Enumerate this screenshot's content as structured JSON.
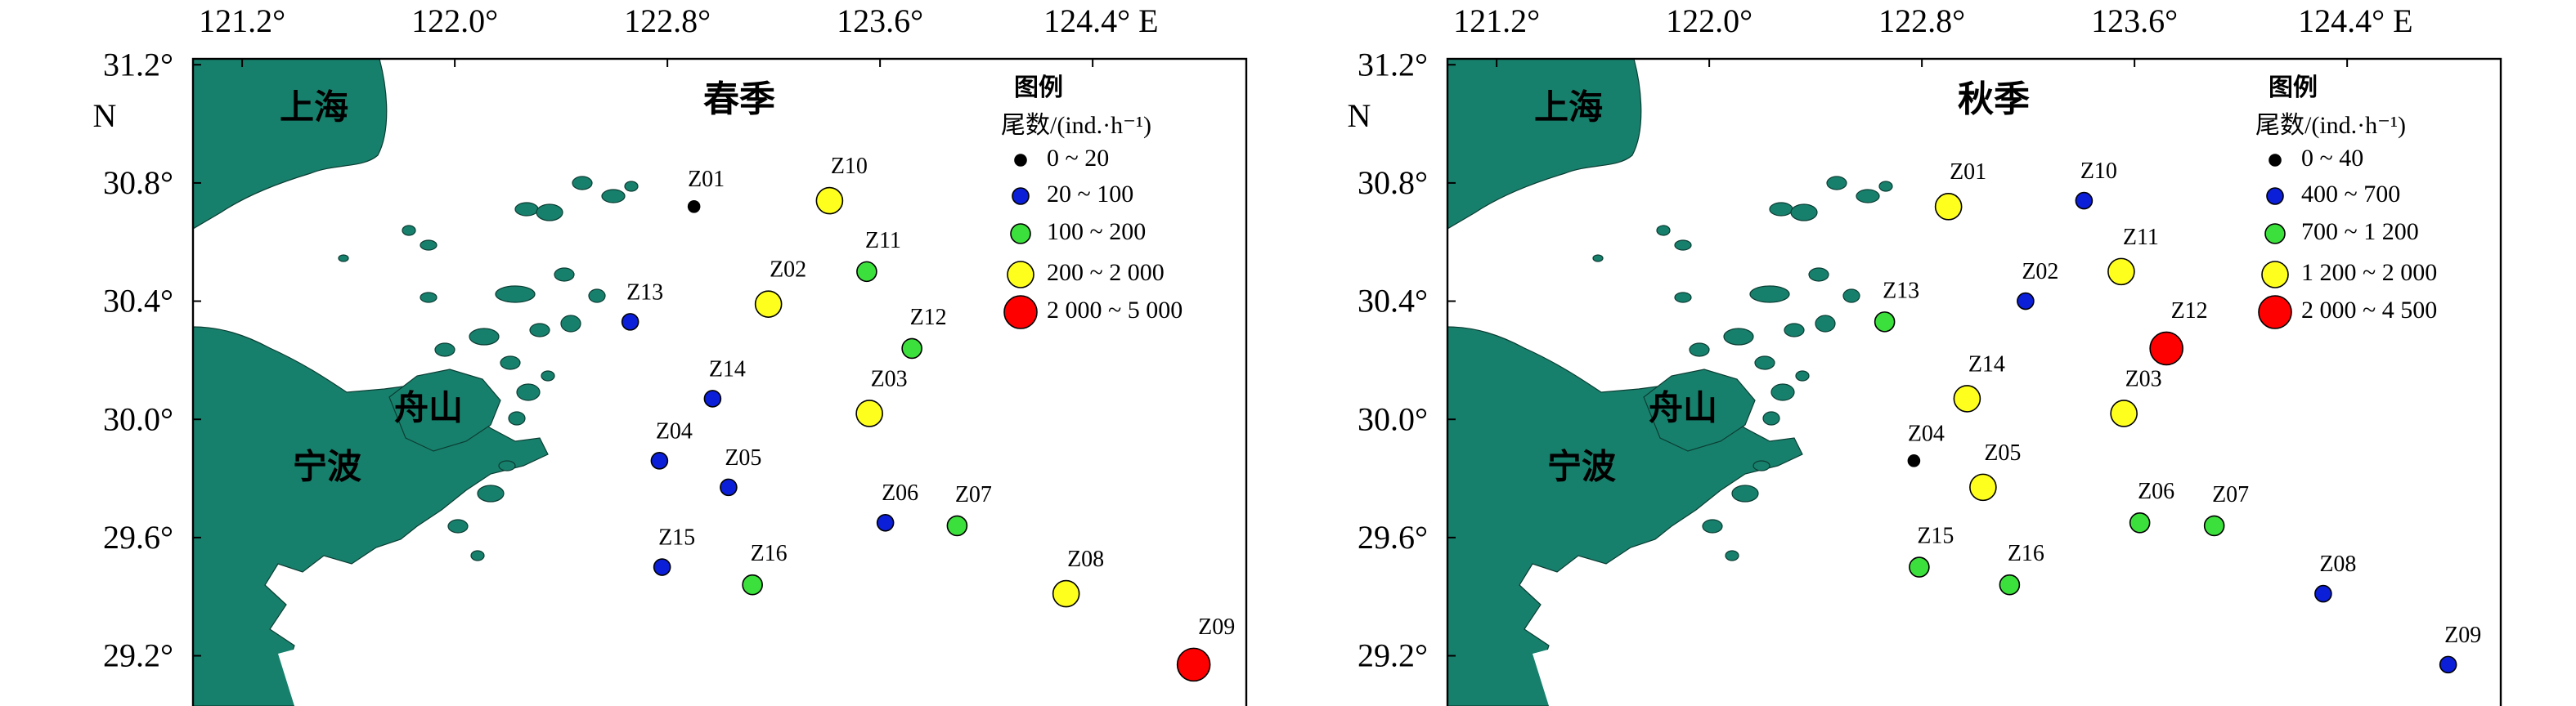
{
  "xlim": [
    121.015,
    124.978
  ],
  "ylim": [
    29.03,
    31.22
  ],
  "xticks": [
    {
      "value": 121.2,
      "label": "121.2°"
    },
    {
      "value": 122.0,
      "label": "122.0°"
    },
    {
      "value": 122.8,
      "label": "122.8°"
    },
    {
      "value": 123.6,
      "label": "123.6°"
    },
    {
      "value": 124.4,
      "label": "124.4° E"
    }
  ],
  "yticks": [
    {
      "value": 31.2,
      "label": "31.2°"
    },
    {
      "value": 30.8,
      "label": "30.8°"
    },
    {
      "value": 30.4,
      "label": "30.4°"
    },
    {
      "value": 30.0,
      "label": "30.0°"
    },
    {
      "value": 29.6,
      "label": "29.6°"
    },
    {
      "value": 29.2,
      "label": "29.2°"
    }
  ],
  "y_unit": "N",
  "places": [
    "上海",
    "舟山",
    "宁波"
  ],
  "panels": [
    {
      "title": "春季",
      "legend": {
        "title": "图例",
        "unit": "尾数/(ind.·h⁻¹)",
        "items": [
          {
            "label": "0 ~ 20",
            "color": "#000000"
          },
          {
            "label": "20 ~ 100",
            "color": "#0c1fd8"
          },
          {
            "label": "100 ~ 200",
            "color": "#3ce03c"
          },
          {
            "label": "200 ~ 2 000",
            "color": "#ffff1e"
          },
          {
            "label": "2 000 ~ 5 000",
            "color": "#ff0000"
          }
        ]
      },
      "stations": [
        {
          "name": "Z01",
          "lon": 122.9,
          "lat": 30.72,
          "class": 0
        },
        {
          "name": "Z10",
          "lon": 123.41,
          "lat": 30.74,
          "class": 3
        },
        {
          "name": "Z11",
          "lon": 123.55,
          "lat": 30.5,
          "class": 2
        },
        {
          "name": "Z02",
          "lon": 123.18,
          "lat": 30.39,
          "class": 3
        },
        {
          "name": "Z12",
          "lon": 123.72,
          "lat": 30.24,
          "class": 2
        },
        {
          "name": "Z13",
          "lon": 122.66,
          "lat": 30.33,
          "class": 1
        },
        {
          "name": "Z14",
          "lon": 122.97,
          "lat": 30.07,
          "class": 1
        },
        {
          "name": "Z03",
          "lon": 123.56,
          "lat": 30.02,
          "class": 3
        },
        {
          "name": "Z04",
          "lon": 122.77,
          "lat": 29.86,
          "class": 1
        },
        {
          "name": "Z05",
          "lon": 123.03,
          "lat": 29.77,
          "class": 1
        },
        {
          "name": "Z06",
          "lon": 123.62,
          "lat": 29.65,
          "class": 1
        },
        {
          "name": "Z07",
          "lon": 123.89,
          "lat": 29.64,
          "class": 2
        },
        {
          "name": "Z15",
          "lon": 122.78,
          "lat": 29.5,
          "class": 1
        },
        {
          "name": "Z16",
          "lon": 123.12,
          "lat": 29.44,
          "class": 2
        },
        {
          "name": "Z08",
          "lon": 124.3,
          "lat": 29.41,
          "class": 3
        },
        {
          "name": "Z09",
          "lon": 124.78,
          "lat": 29.17,
          "class": 4
        }
      ]
    },
    {
      "title": "秋季",
      "legend": {
        "title": "图例",
        "unit": "尾数/(ind.·h⁻¹)",
        "items": [
          {
            "label": "0 ~ 40",
            "color": "#000000"
          },
          {
            "label": "400 ~ 700",
            "color": "#0c1fd8"
          },
          {
            "label": "700 ~ 1 200",
            "color": "#3ce03c"
          },
          {
            "label": "1 200 ~ 2 000",
            "color": "#ffff1e"
          },
          {
            "label": "2 000 ~ 4 500",
            "color": "#ff0000"
          }
        ]
      },
      "stations": [
        {
          "name": "Z01",
          "lon": 122.9,
          "lat": 30.72,
          "class": 3
        },
        {
          "name": "Z10",
          "lon": 123.41,
          "lat": 30.74,
          "class": 1
        },
        {
          "name": "Z11",
          "lon": 123.55,
          "lat": 30.5,
          "class": 3
        },
        {
          "name": "Z02",
          "lon": 123.19,
          "lat": 30.4,
          "class": 1
        },
        {
          "name": "Z12",
          "lon": 123.72,
          "lat": 30.24,
          "class": 4
        },
        {
          "name": "Z13",
          "lon": 122.66,
          "lat": 30.33,
          "class": 2
        },
        {
          "name": "Z14",
          "lon": 122.97,
          "lat": 30.07,
          "class": 3
        },
        {
          "name": "Z03",
          "lon": 123.56,
          "lat": 30.02,
          "class": 3
        },
        {
          "name": "Z04",
          "lon": 122.77,
          "lat": 29.86,
          "class": 0
        },
        {
          "name": "Z05",
          "lon": 123.03,
          "lat": 29.77,
          "class": 3
        },
        {
          "name": "Z06",
          "lon": 123.62,
          "lat": 29.65,
          "class": 2
        },
        {
          "name": "Z07",
          "lon": 123.9,
          "lat": 29.64,
          "class": 2
        },
        {
          "name": "Z15",
          "lon": 122.79,
          "lat": 29.5,
          "class": 2
        },
        {
          "name": "Z16",
          "lon": 123.13,
          "lat": 29.44,
          "class": 2
        },
        {
          "name": "Z08",
          "lon": 124.31,
          "lat": 29.41,
          "class": 1
        },
        {
          "name": "Z09",
          "lon": 124.78,
          "lat": 29.17,
          "class": 1
        }
      ]
    }
  ]
}
